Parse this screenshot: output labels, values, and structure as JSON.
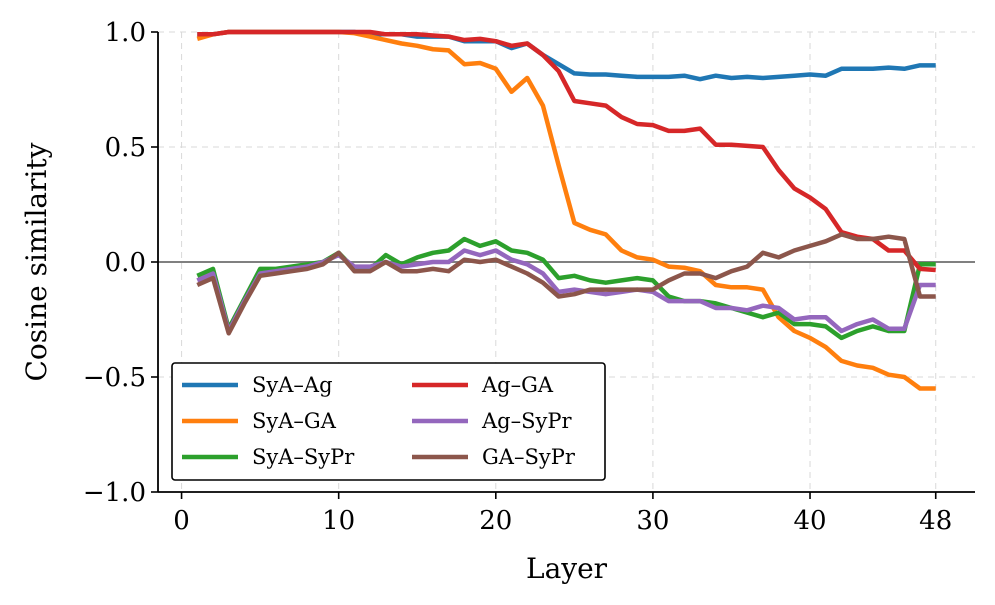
{
  "chart_data": {
    "type": "line",
    "xlabel": "Layer",
    "ylabel": "Cosine similarity",
    "xlim": [
      -1.5,
      50.5
    ],
    "ylim": [
      -1.0,
      1.0
    ],
    "xticks": [
      0,
      10,
      20,
      30,
      40,
      48
    ],
    "yticks": [
      -1.0,
      -0.5,
      0.0,
      0.5,
      1.0
    ],
    "ytick_labels": [
      "−1.0",
      "−0.5",
      "0.0",
      "0.5",
      "1.0"
    ],
    "grid": true,
    "reference_line_y": 0,
    "legend_position": "lower-left",
    "x": [
      1,
      2,
      3,
      4,
      5,
      6,
      7,
      8,
      9,
      10,
      11,
      12,
      13,
      14,
      15,
      16,
      17,
      18,
      19,
      20,
      21,
      22,
      23,
      24,
      25,
      26,
      27,
      28,
      29,
      30,
      31,
      32,
      33,
      34,
      35,
      36,
      37,
      38,
      39,
      40,
      41,
      42,
      43,
      44,
      45,
      46,
      47,
      48
    ],
    "series": [
      {
        "name": "SyA–Ag",
        "color": "#1f77b4",
        "values": [
          0.99,
          0.99,
          1.0,
          1.0,
          1.0,
          1.0,
          1.0,
          1.0,
          1.0,
          1.0,
          1.0,
          0.99,
          0.99,
          0.99,
          0.98,
          0.98,
          0.98,
          0.96,
          0.96,
          0.96,
          0.93,
          0.95,
          0.9,
          0.86,
          0.82,
          0.815,
          0.815,
          0.81,
          0.805,
          0.805,
          0.805,
          0.81,
          0.795,
          0.81,
          0.8,
          0.805,
          0.8,
          0.805,
          0.81,
          0.815,
          0.81,
          0.84,
          0.84,
          0.84,
          0.845,
          0.84,
          0.855,
          0.855
        ]
      },
      {
        "name": "SyA–GA",
        "color": "#ff7f0e",
        "values": [
          0.97,
          0.99,
          1.0,
          1.0,
          1.0,
          1.0,
          1.0,
          1.0,
          1.0,
          1.0,
          0.995,
          0.98,
          0.965,
          0.95,
          0.94,
          0.925,
          0.92,
          0.86,
          0.865,
          0.84,
          0.74,
          0.8,
          0.68,
          0.42,
          0.17,
          0.14,
          0.12,
          0.05,
          0.02,
          0.01,
          -0.02,
          -0.025,
          -0.04,
          -0.1,
          -0.11,
          -0.11,
          -0.12,
          -0.24,
          -0.3,
          -0.33,
          -0.37,
          -0.43,
          -0.45,
          -0.46,
          -0.49,
          -0.5,
          -0.55,
          -0.55
        ]
      },
      {
        "name": "SyA–SyPr",
        "color": "#2ca02c",
        "values": [
          -0.06,
          -0.03,
          -0.29,
          -0.16,
          -0.03,
          -0.03,
          -0.02,
          -0.01,
          0.0,
          0.04,
          -0.03,
          -0.03,
          0.03,
          -0.01,
          0.02,
          0.04,
          0.05,
          0.1,
          0.07,
          0.09,
          0.05,
          0.04,
          0.01,
          -0.07,
          -0.06,
          -0.08,
          -0.09,
          -0.08,
          -0.07,
          -0.08,
          -0.15,
          -0.17,
          -0.17,
          -0.18,
          -0.2,
          -0.22,
          -0.24,
          -0.22,
          -0.27,
          -0.27,
          -0.28,
          -0.33,
          -0.3,
          -0.28,
          -0.3,
          -0.3,
          -0.01,
          -0.01
        ]
      },
      {
        "name": "Ag–GA",
        "color": "#d62728",
        "values": [
          0.99,
          0.99,
          1.0,
          1.0,
          1.0,
          1.0,
          1.0,
          1.0,
          1.0,
          1.0,
          1.0,
          1.0,
          0.99,
          0.99,
          0.99,
          0.985,
          0.98,
          0.965,
          0.97,
          0.96,
          0.94,
          0.95,
          0.9,
          0.83,
          0.7,
          0.69,
          0.68,
          0.63,
          0.6,
          0.595,
          0.57,
          0.57,
          0.58,
          0.51,
          0.51,
          0.505,
          0.5,
          0.4,
          0.32,
          0.28,
          0.23,
          0.13,
          0.11,
          0.1,
          0.05,
          0.05,
          -0.03,
          -0.035
        ]
      },
      {
        "name": "Ag–SyPr",
        "color": "#9467bd",
        "values": [
          -0.08,
          -0.05,
          -0.3,
          -0.17,
          -0.05,
          -0.04,
          -0.03,
          -0.02,
          0.0,
          0.03,
          -0.02,
          -0.02,
          0.0,
          -0.02,
          -0.01,
          0.0,
          0.0,
          0.05,
          0.03,
          0.05,
          0.01,
          -0.01,
          -0.05,
          -0.13,
          -0.12,
          -0.13,
          -0.14,
          -0.13,
          -0.12,
          -0.13,
          -0.17,
          -0.17,
          -0.17,
          -0.2,
          -0.2,
          -0.21,
          -0.19,
          -0.2,
          -0.25,
          -0.24,
          -0.24,
          -0.3,
          -0.27,
          -0.25,
          -0.29,
          -0.29,
          -0.1,
          -0.1
        ]
      },
      {
        "name": "GA–SyPr",
        "color": "#8c564b",
        "values": [
          -0.1,
          -0.07,
          -0.31,
          -0.18,
          -0.06,
          -0.05,
          -0.04,
          -0.03,
          -0.01,
          0.04,
          -0.04,
          -0.04,
          0.0,
          -0.04,
          -0.04,
          -0.03,
          -0.04,
          0.01,
          0.0,
          0.01,
          -0.02,
          -0.05,
          -0.09,
          -0.15,
          -0.14,
          -0.12,
          -0.12,
          -0.12,
          -0.12,
          -0.12,
          -0.08,
          -0.05,
          -0.05,
          -0.07,
          -0.04,
          -0.02,
          0.04,
          0.02,
          0.05,
          0.07,
          0.09,
          0.12,
          0.1,
          0.1,
          0.11,
          0.1,
          -0.15,
          -0.15
        ]
      }
    ]
  }
}
